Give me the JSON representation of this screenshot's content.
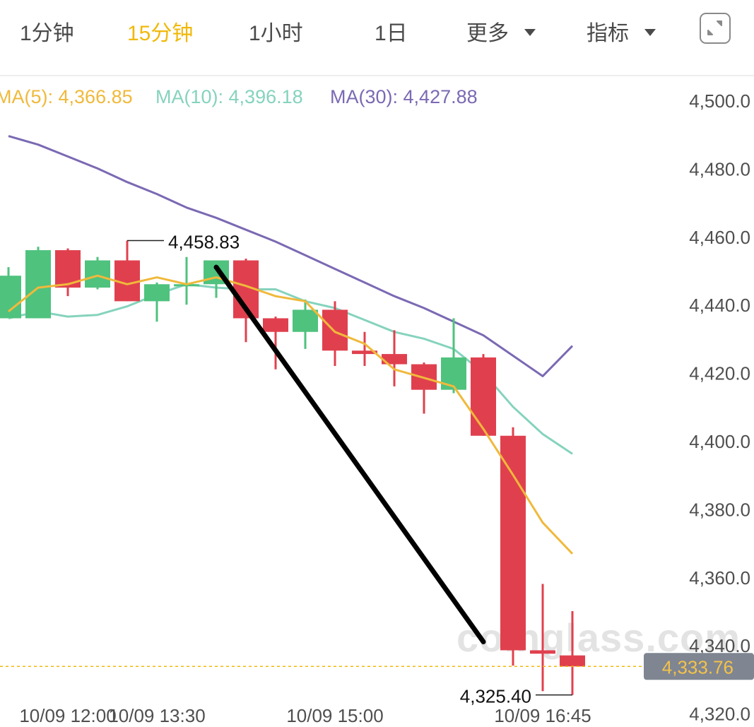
{
  "tabs": [
    {
      "label": "1分钟",
      "active": false
    },
    {
      "label": "15分钟",
      "active": true
    },
    {
      "label": "1小时",
      "active": false
    },
    {
      "label": "1日",
      "active": false
    },
    {
      "label": "更多",
      "active": false,
      "dropdown": true
    },
    {
      "label": "指标",
      "active": false,
      "dropdown": true
    }
  ],
  "expand_icon": "expand-icon",
  "watermark": "coinglass.com",
  "legend": [
    {
      "label": "MA(5)",
      "value": "4,366.85",
      "color": "#f0b93b"
    },
    {
      "label": "MA(10)",
      "value": "4,396.18",
      "color": "#85d3bd"
    },
    {
      "label": "MA(30)",
      "value": "4,427.88",
      "color": "#7b69b3"
    }
  ],
  "colors": {
    "up": "#4fc27e",
    "down": "#e0404e",
    "accent": "#f0b90b",
    "ma5": "#f0b93b",
    "ma10": "#85d3bd",
    "ma30": "#7b69b3"
  },
  "chart_data": {
    "type": "candlestick",
    "y_ticks": [
      "4,500.0",
      "4,480.0",
      "4,460.0",
      "4,440.0",
      "4,420.0",
      "4,400.0",
      "4,380.0",
      "4,360.0",
      "4,340.0",
      "4,320.0"
    ],
    "ylim": [
      4320,
      4500
    ],
    "x_ticks": [
      {
        "label": "10/09 12:00",
        "index": 2
      },
      {
        "label": "10/09 13:30",
        "index": 5
      },
      {
        "label": "10/09 15:00",
        "index": 11
      },
      {
        "label": "10/09 16:45",
        "index": 18
      }
    ],
    "candles": [
      {
        "o": 4436.0,
        "h": 4451.0,
        "l": 4436.0,
        "c": 4448.5
      },
      {
        "o": 4436.0,
        "h": 4457.0,
        "l": 4436.0,
        "c": 4456.0
      },
      {
        "o": 4456.0,
        "h": 4456.5,
        "l": 4442.5,
        "c": 4445.0
      },
      {
        "o": 4445.0,
        "h": 4454.0,
        "l": 4444.5,
        "c": 4453.0
      },
      {
        "o": 4453.0,
        "h": 4458.83,
        "l": 4441.0,
        "c": 4441.0
      },
      {
        "o": 4441.0,
        "h": 4446.5,
        "l": 4435.0,
        "c": 4446.0
      },
      {
        "o": 4446.0,
        "h": 4454.0,
        "l": 4440.0,
        "c": 4446.0
      },
      {
        "o": 4446.0,
        "h": 4453.0,
        "l": 4442.0,
        "c": 4453.0
      },
      {
        "o": 4453.0,
        "h": 4453.5,
        "l": 4429.0,
        "c": 4436.0
      },
      {
        "o": 4436.0,
        "h": 4436.5,
        "l": 4421.0,
        "c": 4432.0
      },
      {
        "o": 4432.0,
        "h": 4441.5,
        "l": 4427.0,
        "c": 4438.5
      },
      {
        "o": 4438.5,
        "h": 4441.0,
        "l": 4422.0,
        "c": 4426.5
      },
      {
        "o": 4426.5,
        "h": 4432.0,
        "l": 4422.0,
        "c": 4425.5
      },
      {
        "o": 4425.5,
        "h": 4432.5,
        "l": 4416.0,
        "c": 4422.5
      },
      {
        "o": 4422.5,
        "h": 4423.0,
        "l": 4408.0,
        "c": 4415.0
      },
      {
        "o": 4415.0,
        "h": 4436.0,
        "l": 4414.0,
        "c": 4424.5
      },
      {
        "o": 4424.5,
        "h": 4425.5,
        "l": 4401.5,
        "c": 4401.5
      },
      {
        "o": 4401.5,
        "h": 4404.0,
        "l": 4334.0,
        "c": 4338.5
      },
      {
        "o": 4338.5,
        "h": 4358.0,
        "l": 4326.5,
        "c": 4337.5
      },
      {
        "o": 4337.0,
        "h": 4350.0,
        "l": 4325.4,
        "c": 4333.76
      }
    ],
    "ma5": [
      4438.0,
      4445.0,
      4446.0,
      4448.5,
      4446.0,
      4448.0,
      4446.0,
      4448.0,
      4445.5,
      4442.5,
      4441.0,
      4432.0,
      4428.5,
      4421.0,
      4418.5,
      4416.0,
      4403.5,
      4390.0,
      4376.0,
      4366.85
    ],
    "ma10": [
      4436.0,
      4438.0,
      4436.5,
      4437.0,
      4439.5,
      4443.0,
      4446.0,
      4445.0,
      4444.5,
      4444.5,
      4441.0,
      4439.0,
      4435.5,
      4432.0,
      4430.0,
      4427.0,
      4420.0,
      4410.0,
      4402.0,
      4396.18
    ],
    "ma30": [
      4489.5,
      4487.0,
      4483.5,
      4480.0,
      4476.0,
      4472.5,
      4468.5,
      4465.5,
      4462.0,
      4458.5,
      4454.5,
      4450.5,
      4446.5,
      4442.5,
      4439.0,
      4435.0,
      4431.0,
      4425.0,
      4419.0,
      4427.88
    ],
    "high_marker": {
      "label": "4,458.83",
      "index": 4,
      "value": 4458.83
    },
    "low_marker": {
      "label": "4,325.40",
      "index": 19,
      "value": 4325.4
    },
    "current_price": {
      "label": "4,333.76",
      "value": 4333.76
    },
    "trend_line": {
      "from": {
        "index": 7,
        "value": 4451.0
      },
      "to": {
        "index": 16,
        "value": 4341.0
      }
    }
  }
}
